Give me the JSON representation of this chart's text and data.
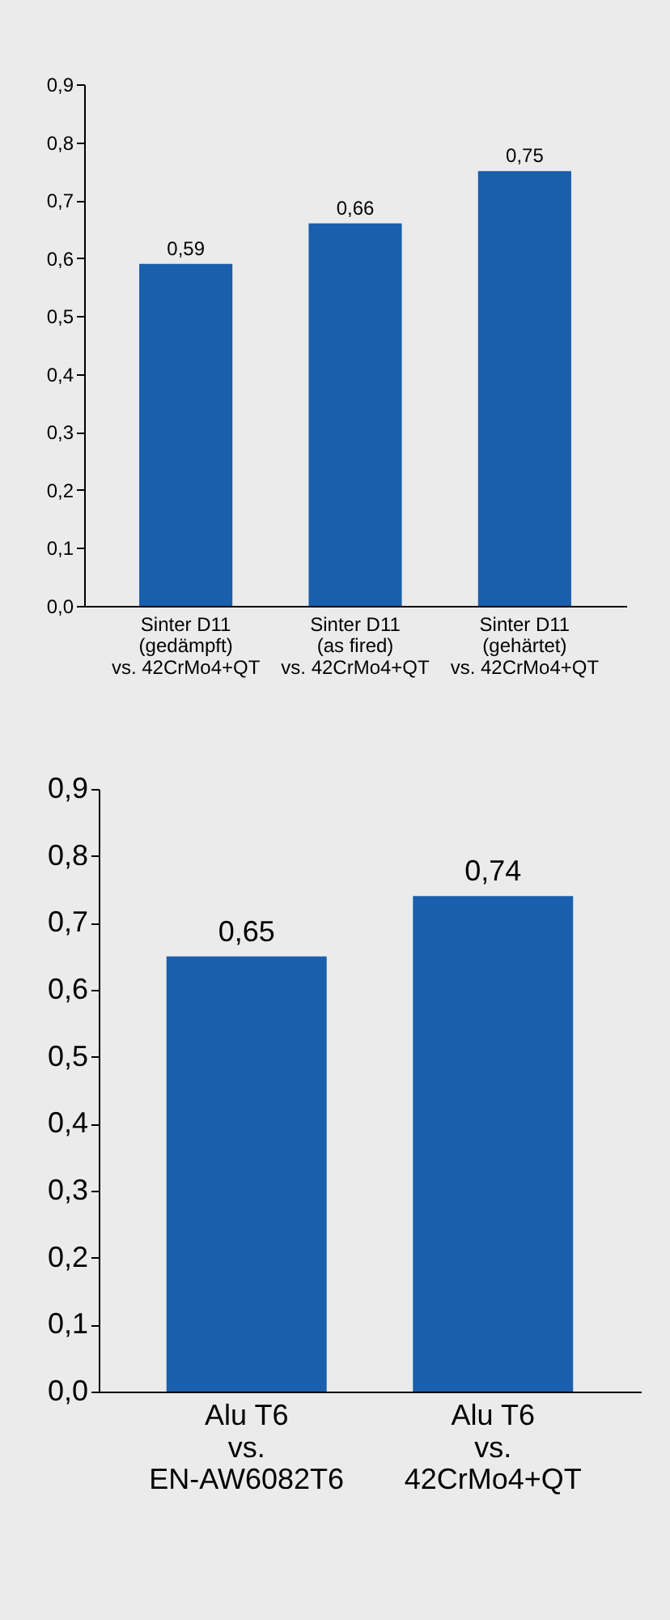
{
  "chart_data": [
    {
      "type": "bar",
      "categories": [
        "Sinter D11\n(gedämpft)\nvs. 42CrMo4+QT",
        "Sinter D11\n(as fired)\nvs. 42CrMo4+QT",
        "Sinter D11\n(gehärtet)\nvs. 42CrMo4+QT"
      ],
      "values": [
        0.59,
        0.66,
        0.75
      ],
      "color": "#1a5fad",
      "value_labels": [
        "0,59",
        "0,66",
        "0,75"
      ],
      "ylim": [
        0,
        0.9
      ],
      "yticks": [
        {
          "value": 0,
          "label": "0,0"
        },
        {
          "value": 0.1,
          "label": "0,1"
        },
        {
          "value": 0.2,
          "label": "0,2"
        },
        {
          "value": 0.3,
          "label": "0,3"
        },
        {
          "value": 0.4,
          "label": "0,4"
        },
        {
          "value": 0.5,
          "label": "0,5"
        },
        {
          "value": 0.6,
          "label": "0,6"
        },
        {
          "value": 0.7,
          "label": "0,7"
        },
        {
          "value": 0.8,
          "label": "0,8"
        },
        {
          "value": 0.9,
          "label": "0,9"
        }
      ],
      "grid": false
    },
    {
      "type": "bar",
      "categories": [
        "Alu T6\nvs.\nEN-AW6082T6",
        "Alu T6\nvs.\n42CrMo4+QT"
      ],
      "values": [
        0.65,
        0.74
      ],
      "color": "#1a5fad",
      "value_labels": [
        "0,65",
        "0,74"
      ],
      "ylim": [
        0,
        0.9
      ],
      "yticks": [
        {
          "value": 0,
          "label": "0,0"
        },
        {
          "value": 0.1,
          "label": "0,1"
        },
        {
          "value": 0.2,
          "label": "0,2"
        },
        {
          "value": 0.3,
          "label": "0,3"
        },
        {
          "value": 0.4,
          "label": "0,4"
        },
        {
          "value": 0.5,
          "label": "0,5"
        },
        {
          "value": 0.6,
          "label": "0,6"
        },
        {
          "value": 0.7,
          "label": "0,7"
        },
        {
          "value": 0.8,
          "label": "0,8"
        },
        {
          "value": 0.9,
          "label": "0,9"
        }
      ],
      "grid": false
    }
  ]
}
